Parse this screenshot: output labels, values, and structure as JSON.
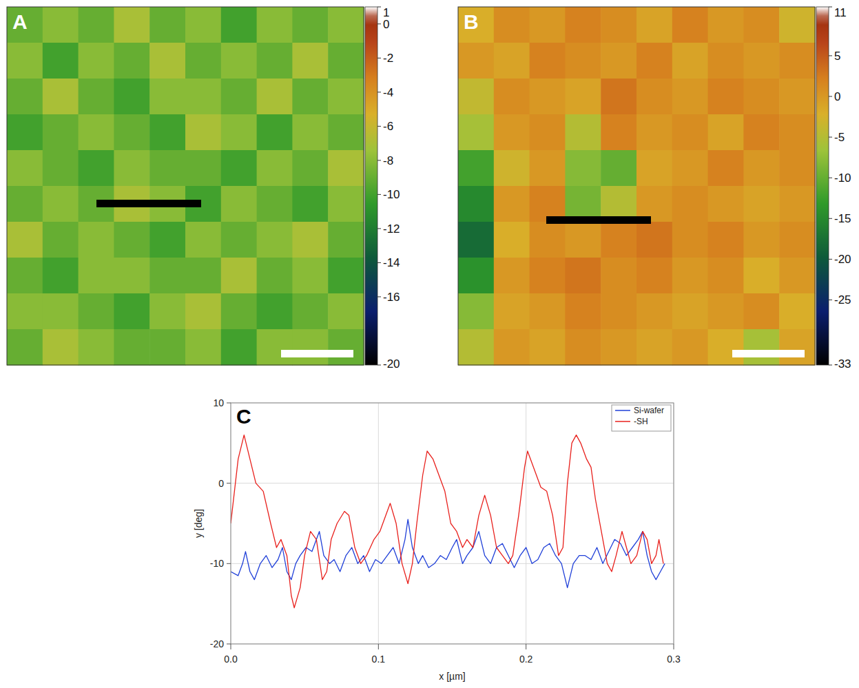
{
  "chart_data": [
    {
      "type": "heatmap",
      "title": "A",
      "tick_labels": false,
      "cells": [
        [
          -9,
          -8,
          -9,
          -7,
          -9,
          -8,
          -10,
          -8,
          -9,
          -8
        ],
        [
          -8,
          -10,
          -8,
          -9,
          -7,
          -9,
          -8,
          -9,
          -7,
          -9
        ],
        [
          -9,
          -7,
          -9,
          -10,
          -8,
          -8,
          -9,
          -7,
          -9,
          -8
        ],
        [
          -10,
          -9,
          -8,
          -9,
          -10,
          -7,
          -8,
          -10,
          -8,
          -9
        ],
        [
          -8,
          -9,
          -10,
          -8,
          -9,
          -9,
          -10,
          -8,
          -9,
          -7
        ],
        [
          -9,
          -8,
          -9,
          -7,
          -8,
          -10,
          -8,
          -9,
          -10,
          -8
        ],
        [
          -7,
          -9,
          -8,
          -9,
          -10,
          -8,
          -9,
          -8,
          -7,
          -9
        ],
        [
          -9,
          -10,
          -8,
          -8,
          -9,
          -9,
          -7,
          -9,
          -8,
          -10
        ],
        [
          -8,
          -8,
          -9,
          -10,
          -8,
          -7,
          -9,
          -10,
          -9,
          -8
        ],
        [
          -9,
          -7,
          -8,
          -9,
          -9,
          -8,
          -10,
          -8,
          -8,
          -9
        ]
      ],
      "colorbar_range": [
        -20,
        1
      ],
      "colorbar_ticks": [
        1,
        0,
        -2,
        -4,
        -6,
        -8,
        -10,
        -12,
        -14,
        -16,
        -20
      ]
    },
    {
      "type": "heatmap",
      "title": "B",
      "tick_labels": false,
      "cells": [
        [
          -2,
          1,
          0,
          2,
          1,
          -1,
          2,
          0,
          1,
          -3
        ],
        [
          0,
          -1,
          2,
          1,
          0,
          2,
          -1,
          1,
          0,
          1
        ],
        [
          -4,
          1,
          0,
          -1,
          3,
          1,
          0,
          2,
          1,
          0
        ],
        [
          -6,
          0,
          1,
          -5,
          2,
          0,
          1,
          -1,
          2,
          1
        ],
        [
          -12,
          -3,
          0,
          -8,
          -10,
          -1,
          0,
          2,
          0,
          1
        ],
        [
          -15,
          0,
          2,
          -9,
          -5,
          0,
          1,
          0,
          -1,
          0
        ],
        [
          -18,
          -2,
          1,
          0,
          2,
          3,
          1,
          2,
          0,
          1
        ],
        [
          -14,
          0,
          2,
          3,
          1,
          2,
          0,
          1,
          -2,
          0
        ],
        [
          -8,
          -1,
          0,
          2,
          1,
          0,
          -1,
          0,
          1,
          -2
        ],
        [
          -5,
          0,
          -1,
          1,
          0,
          -1,
          0,
          -2,
          -6,
          -1
        ]
      ],
      "colorbar_range": [
        -33,
        11
      ],
      "colorbar_ticks": [
        11,
        5,
        0,
        -5,
        -10,
        -15,
        -20,
        -25,
        -33
      ]
    },
    {
      "type": "line",
      "title": "C",
      "x_label": "x [µm]",
      "y_label": "y [deg]",
      "xlim": [
        0,
        0.3
      ],
      "ylim": [
        -20,
        10
      ],
      "xticks": [
        {
          "value": 0,
          "label": "0.0"
        },
        {
          "value": 0.1,
          "label": "0.1"
        },
        {
          "value": 0.2,
          "label": "0.2"
        },
        {
          "value": 0.3,
          "label": "0.3"
        }
      ],
      "yticks": [
        -20,
        -10,
        0,
        10
      ],
      "grid": true,
      "legend": "upper right",
      "series": [
        {
          "name": "Si-wafer",
          "color": "#1f3fd8",
          "x": [
            0,
            0.005,
            0.008,
            0.01,
            0.013,
            0.016,
            0.02,
            0.024,
            0.028,
            0.032,
            0.035,
            0.038,
            0.041,
            0.044,
            0.047,
            0.051,
            0.055,
            0.058,
            0.06,
            0.063,
            0.067,
            0.07,
            0.074,
            0.078,
            0.082,
            0.086,
            0.09,
            0.094,
            0.098,
            0.102,
            0.106,
            0.11,
            0.114,
            0.118,
            0.12,
            0.123,
            0.127,
            0.13,
            0.134,
            0.138,
            0.142,
            0.146,
            0.15,
            0.153,
            0.157,
            0.16,
            0.164,
            0.168,
            0.172,
            0.176,
            0.18,
            0.184,
            0.188,
            0.192,
            0.196,
            0.2,
            0.204,
            0.208,
            0.212,
            0.216,
            0.22,
            0.224,
            0.228,
            0.232,
            0.236,
            0.24,
            0.244,
            0.248,
            0.252,
            0.256,
            0.26,
            0.264,
            0.268,
            0.272,
            0.276,
            0.279,
            0.282,
            0.285,
            0.288,
            0.291,
            0.294
          ],
          "values": [
            -11,
            -11.5,
            -10,
            -8.5,
            -11,
            -12,
            -10,
            -9,
            -10.5,
            -9.5,
            -8,
            -11,
            -12,
            -10,
            -9,
            -8,
            -8.5,
            -7,
            -6,
            -9,
            -10,
            -9.5,
            -11,
            -9,
            -8,
            -10,
            -9,
            -11,
            -9.5,
            -10,
            -9,
            -8,
            -10,
            -7,
            -4.5,
            -8,
            -10,
            -9,
            -10.5,
            -10,
            -9,
            -9.5,
            -8,
            -7,
            -10,
            -9,
            -8,
            -6,
            -9,
            -10,
            -8,
            -7.5,
            -9,
            -10.5,
            -9,
            -8,
            -10,
            -9.5,
            -8,
            -7.5,
            -9,
            -10,
            -13,
            -10,
            -9,
            -9,
            -9.5,
            -8,
            -10,
            -8.5,
            -7,
            -7.5,
            -9,
            -8,
            -7,
            -6,
            -9,
            -11,
            -12,
            -11,
            -10
          ]
        },
        {
          "name": "-SH",
          "color": "#e8201c",
          "x": [
            0,
            0.005,
            0.009,
            0.013,
            0.017,
            0.022,
            0.027,
            0.031,
            0.034,
            0.038,
            0.041,
            0.043,
            0.047,
            0.05,
            0.054,
            0.058,
            0.062,
            0.065,
            0.068,
            0.072,
            0.077,
            0.08,
            0.084,
            0.088,
            0.092,
            0.097,
            0.101,
            0.105,
            0.108,
            0.112,
            0.116,
            0.12,
            0.123,
            0.126,
            0.13,
            0.133,
            0.137,
            0.141,
            0.145,
            0.149,
            0.153,
            0.157,
            0.16,
            0.164,
            0.168,
            0.172,
            0.176,
            0.18,
            0.184,
            0.188,
            0.191,
            0.195,
            0.199,
            0.201,
            0.205,
            0.21,
            0.214,
            0.218,
            0.222,
            0.225,
            0.228,
            0.231,
            0.234,
            0.237,
            0.241,
            0.244,
            0.247,
            0.251,
            0.255,
            0.258,
            0.261,
            0.265,
            0.268,
            0.271,
            0.275,
            0.279,
            0.282,
            0.285,
            0.288,
            0.29,
            0.293
          ],
          "values": [
            -5,
            3,
            6,
            3,
            0,
            -1,
            -5,
            -8,
            -7,
            -9,
            -14,
            -15.5,
            -13,
            -9,
            -6,
            -7,
            -12,
            -11,
            -7,
            -5,
            -3.5,
            -4,
            -8,
            -10,
            -9,
            -7,
            -6,
            -4,
            -2.5,
            -5,
            -10,
            -12.5,
            -10,
            -5,
            1,
            4,
            3,
            1,
            -1,
            -5,
            -6,
            -8,
            -7,
            -8,
            -4,
            -1.5,
            -4,
            -8,
            -9,
            -10,
            -9,
            -4,
            2,
            4,
            2,
            -0.5,
            -1,
            -4,
            -9,
            -8,
            0,
            5,
            6,
            5,
            3,
            2,
            -2,
            -6,
            -10,
            -11,
            -9,
            -6,
            -8,
            -10,
            -9,
            -6,
            -7,
            -10,
            -9,
            -7,
            -10
          ]
        }
      ]
    }
  ]
}
